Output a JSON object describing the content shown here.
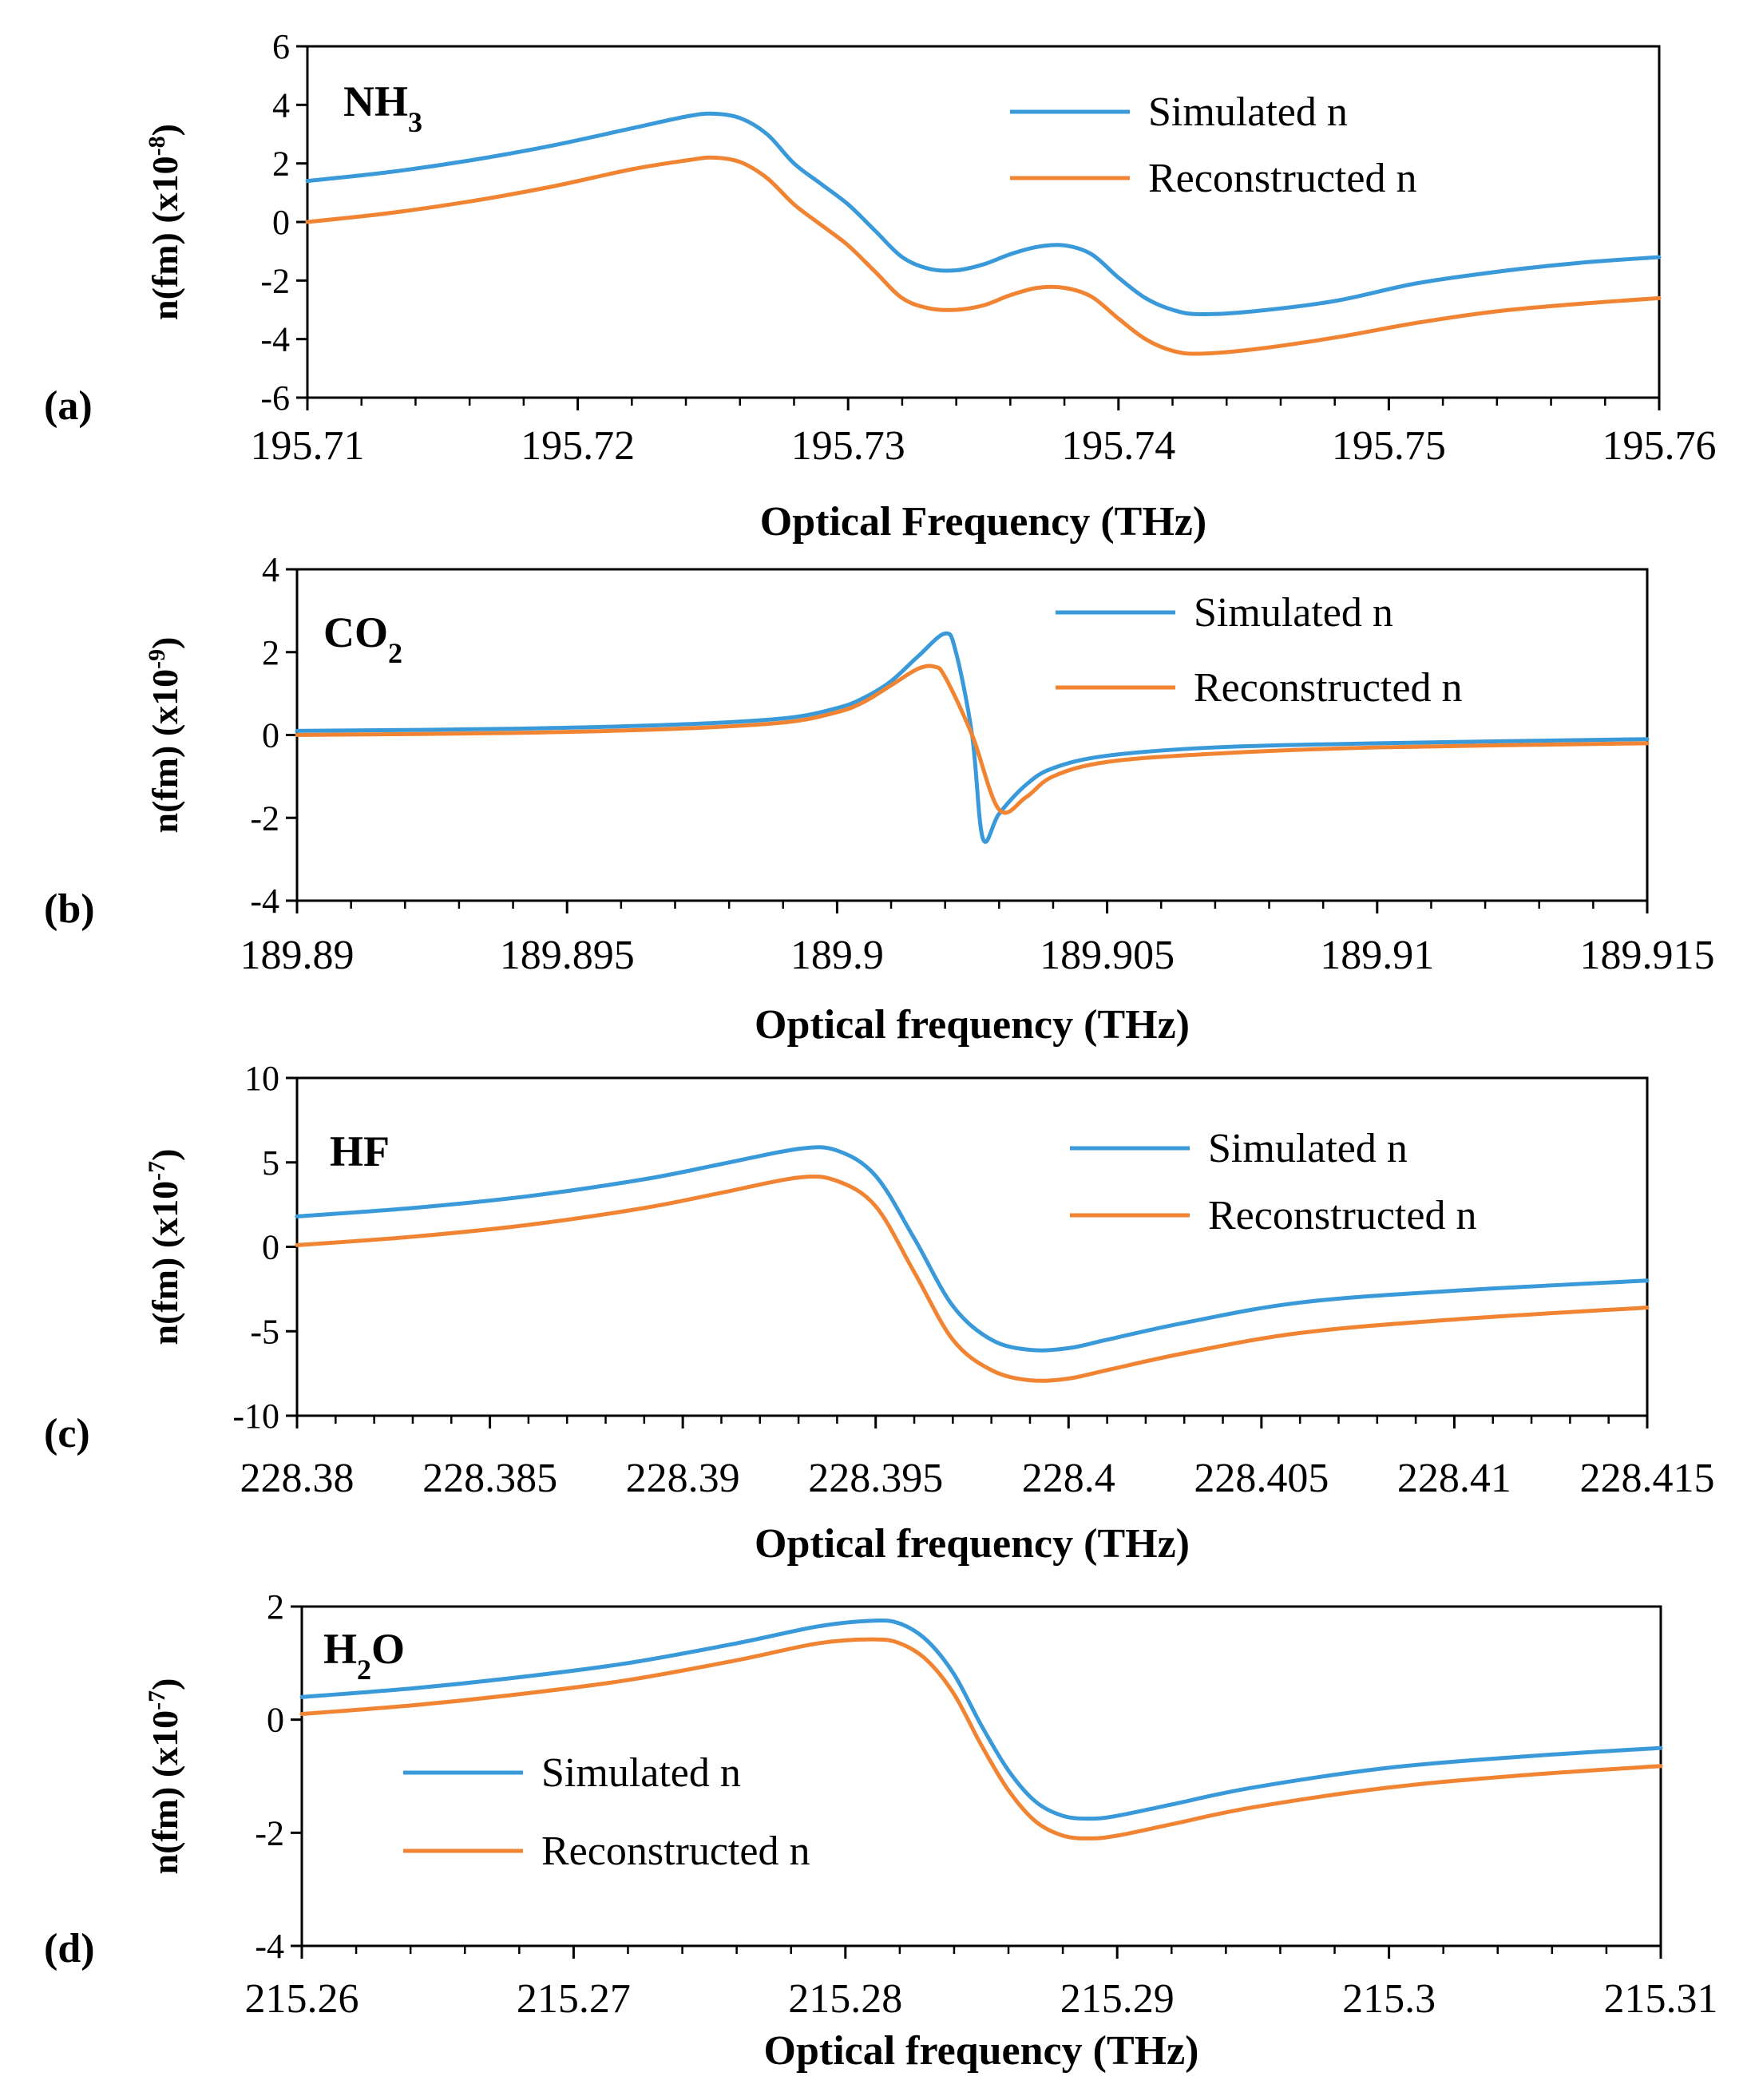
{
  "colors": {
    "simulated": "#3A9AD9",
    "reconstructed": "#F08433",
    "axis": "#000000"
  },
  "chart_data": [
    {
      "type": "line",
      "panel_label": "(a)",
      "molecule": {
        "base": "NH",
        "sub": "3",
        "tail": ""
      },
      "ylabel": {
        "main": "n(fm) (x10",
        "exp": "-8",
        "close": ")"
      },
      "xlabel": "Optical Frequency (THz)",
      "xlim": [
        195.71,
        195.76
      ],
      "ylim": [
        -6,
        6
      ],
      "xticks": [
        195.71,
        195.72,
        195.73,
        195.74,
        195.75,
        195.76
      ],
      "xtick_labels": [
        "195.71",
        "195.72",
        "195.73",
        "195.74",
        "195.75",
        "195.76"
      ],
      "yticks": [
        -6,
        -4,
        -2,
        0,
        2,
        4,
        6
      ],
      "ytick_labels": [
        "-6",
        "-4",
        "-2",
        "0",
        "2",
        "4",
        "6"
      ],
      "minor_xticks": 4,
      "legend_position": "top-right",
      "series": [
        {
          "name": "Simulated n",
          "x": [
            195.71,
            195.713,
            195.716,
            195.719,
            195.722,
            195.724,
            195.725,
            195.726,
            195.727,
            195.728,
            195.729,
            195.73,
            195.731,
            195.732,
            195.733,
            195.734,
            195.735,
            195.736,
            195.737,
            195.738,
            195.739,
            195.74,
            195.741,
            195.742,
            195.743,
            195.745,
            195.748,
            195.751,
            195.754,
            195.757,
            195.76
          ],
          "y": [
            1.4,
            1.7,
            2.1,
            2.6,
            3.2,
            3.6,
            3.7,
            3.55,
            3.0,
            2.0,
            1.3,
            0.6,
            -0.3,
            -1.2,
            -1.6,
            -1.65,
            -1.45,
            -1.1,
            -0.85,
            -0.8,
            -1.1,
            -1.9,
            -2.6,
            -3.0,
            -3.15,
            -3.05,
            -2.7,
            -2.1,
            -1.7,
            -1.4,
            -1.2
          ]
        },
        {
          "name": "Reconstructed n",
          "x": [
            195.71,
            195.713,
            195.716,
            195.719,
            195.722,
            195.724,
            195.725,
            195.726,
            195.727,
            195.728,
            195.729,
            195.73,
            195.731,
            195.732,
            195.733,
            195.734,
            195.735,
            195.736,
            195.737,
            195.738,
            195.739,
            195.74,
            195.741,
            195.742,
            195.743,
            195.745,
            195.748,
            195.751,
            195.754,
            195.757,
            195.76
          ],
          "y": [
            0.0,
            0.3,
            0.7,
            1.2,
            1.8,
            2.1,
            2.2,
            2.05,
            1.5,
            0.6,
            -0.1,
            -0.8,
            -1.7,
            -2.6,
            -2.95,
            -3.0,
            -2.85,
            -2.5,
            -2.25,
            -2.25,
            -2.55,
            -3.3,
            -4.0,
            -4.4,
            -4.5,
            -4.35,
            -3.95,
            -3.45,
            -3.05,
            -2.8,
            -2.6
          ]
        }
      ]
    },
    {
      "type": "line",
      "panel_label": "(b)",
      "molecule": {
        "base": "CO",
        "sub": "2",
        "tail": ""
      },
      "ylabel": {
        "main": "n(fm) (x10",
        "exp": "-9",
        "close": ")"
      },
      "xlabel": "Optical frequency (THz)",
      "xlim": [
        189.89,
        189.915
      ],
      "ylim": [
        -4,
        4
      ],
      "xticks": [
        189.89,
        189.895,
        189.9,
        189.905,
        189.91,
        189.915
      ],
      "xtick_labels": [
        "189.89",
        "189.895",
        "189.9",
        "189.905",
        "189.91",
        "189.915"
      ],
      "yticks": [
        -4,
        -2,
        0,
        2,
        4
      ],
      "ytick_labels": [
        "-4",
        "-2",
        "0",
        "2",
        "4"
      ],
      "minor_xticks": 4,
      "legend_position": "top-right",
      "series": [
        {
          "name": "Simulated n",
          "x": [
            189.89,
            189.894,
            189.897,
            189.899,
            189.9,
            189.9005,
            189.901,
            189.9015,
            189.902,
            189.9022,
            189.9025,
            189.9027,
            189.903,
            189.9035,
            189.904,
            189.905,
            189.907,
            189.91,
            189.915
          ],
          "y": [
            0.1,
            0.15,
            0.25,
            0.4,
            0.65,
            0.9,
            1.3,
            1.9,
            2.45,
            2.0,
            0.0,
            -2.5,
            -1.9,
            -1.2,
            -0.8,
            -0.5,
            -0.3,
            -0.2,
            -0.1
          ]
        },
        {
          "name": "Reconstructed n",
          "x": [
            189.89,
            189.894,
            189.897,
            189.899,
            189.9,
            189.9005,
            189.901,
            189.9015,
            189.9018,
            189.902,
            189.9025,
            189.903,
            189.9035,
            189.904,
            189.905,
            189.907,
            189.91,
            189.915
          ],
          "y": [
            0.0,
            0.05,
            0.15,
            0.3,
            0.55,
            0.8,
            1.2,
            1.6,
            1.65,
            1.4,
            0.0,
            -1.8,
            -1.5,
            -1.0,
            -0.65,
            -0.45,
            -0.3,
            -0.2
          ]
        }
      ]
    },
    {
      "type": "line",
      "panel_label": "(c)",
      "molecule": {
        "base": "HF",
        "sub": "",
        "tail": ""
      },
      "ylabel": {
        "main": "n(fm) (x10",
        "exp": "-7",
        "close": ")"
      },
      "xlabel": "Optical frequency (THz)",
      "xlim": [
        228.38,
        228.415
      ],
      "ylim": [
        -10,
        10
      ],
      "xticks": [
        228.38,
        228.385,
        228.39,
        228.395,
        228.4,
        228.405,
        228.41,
        228.415
      ],
      "xtick_labels": [
        "228.38",
        "228.385",
        "228.39",
        "228.395",
        "228.4",
        "228.405",
        "228.41",
        "228.415"
      ],
      "yticks": [
        -10,
        -5,
        0,
        5,
        10
      ],
      "ytick_labels": [
        "-10",
        "-5",
        "0",
        "5",
        "10"
      ],
      "minor_xticks": 4,
      "legend_position": "top-right",
      "series": [
        {
          "name": "Simulated n",
          "x": [
            228.38,
            228.383,
            228.386,
            228.389,
            228.391,
            228.393,
            228.394,
            228.395,
            228.396,
            228.397,
            228.398,
            228.399,
            228.4,
            228.401,
            228.403,
            228.406,
            228.41,
            228.415
          ],
          "y": [
            1.8,
            2.3,
            3.0,
            4.0,
            4.9,
            5.8,
            5.7,
            4.2,
            0.5,
            -3.5,
            -5.5,
            -6.1,
            -6.0,
            -5.5,
            -4.5,
            -3.3,
            -2.6,
            -2.0
          ]
        },
        {
          "name": "Reconstructed n",
          "x": [
            228.38,
            228.383,
            228.386,
            228.389,
            228.391,
            228.393,
            228.394,
            228.395,
            228.396,
            228.397,
            228.398,
            228.399,
            228.4,
            228.401,
            228.403,
            228.406,
            228.41,
            228.415
          ],
          "y": [
            0.1,
            0.6,
            1.3,
            2.3,
            3.2,
            4.1,
            3.9,
            2.4,
            -1.5,
            -5.5,
            -7.3,
            -7.9,
            -7.8,
            -7.3,
            -6.3,
            -5.1,
            -4.3,
            -3.6
          ]
        }
      ]
    },
    {
      "type": "line",
      "panel_label": "(d)",
      "molecule": {
        "base": "H",
        "sub": "2",
        "tail": "O"
      },
      "ylabel": {
        "main": "n(fm) (x10",
        "exp": "-7",
        "close": ")"
      },
      "xlabel": "Optical frequency (THz)",
      "xlim": [
        215.26,
        215.31
      ],
      "ylim": [
        -4,
        2
      ],
      "xticks": [
        215.26,
        215.27,
        215.28,
        215.29,
        215.3,
        215.31
      ],
      "xtick_labels": [
        "215.26",
        "215.27",
        "215.28",
        "215.29",
        "215.3",
        "215.31"
      ],
      "yticks": [
        -4,
        -2,
        0,
        2
      ],
      "ytick_labels": [
        "-4",
        "-2",
        "0",
        "2"
      ],
      "minor_xticks": 4,
      "legend_position": "center-left",
      "series": [
        {
          "name": "Simulated n",
          "x": [
            215.26,
            215.264,
            215.268,
            215.272,
            215.276,
            215.279,
            215.281,
            215.282,
            215.283,
            215.284,
            215.285,
            215.286,
            215.287,
            215.288,
            215.289,
            215.29,
            215.292,
            215.295,
            215.3,
            215.305,
            215.31
          ],
          "y": [
            0.4,
            0.55,
            0.75,
            1.0,
            1.35,
            1.65,
            1.75,
            1.7,
            1.4,
            0.8,
            -0.1,
            -0.9,
            -1.45,
            -1.7,
            -1.75,
            -1.7,
            -1.5,
            -1.2,
            -0.85,
            -0.65,
            -0.5
          ]
        },
        {
          "name": "Reconstructed n",
          "x": [
            215.26,
            215.264,
            215.268,
            215.272,
            215.276,
            215.279,
            215.281,
            215.282,
            215.283,
            215.284,
            215.285,
            215.286,
            215.287,
            215.288,
            215.289,
            215.29,
            215.292,
            215.295,
            215.3,
            215.305,
            215.31
          ],
          "y": [
            0.1,
            0.25,
            0.45,
            0.7,
            1.05,
            1.35,
            1.42,
            1.35,
            1.05,
            0.45,
            -0.45,
            -1.25,
            -1.8,
            -2.05,
            -2.1,
            -2.05,
            -1.85,
            -1.55,
            -1.2,
            -0.98,
            -0.82
          ]
        }
      ]
    }
  ]
}
